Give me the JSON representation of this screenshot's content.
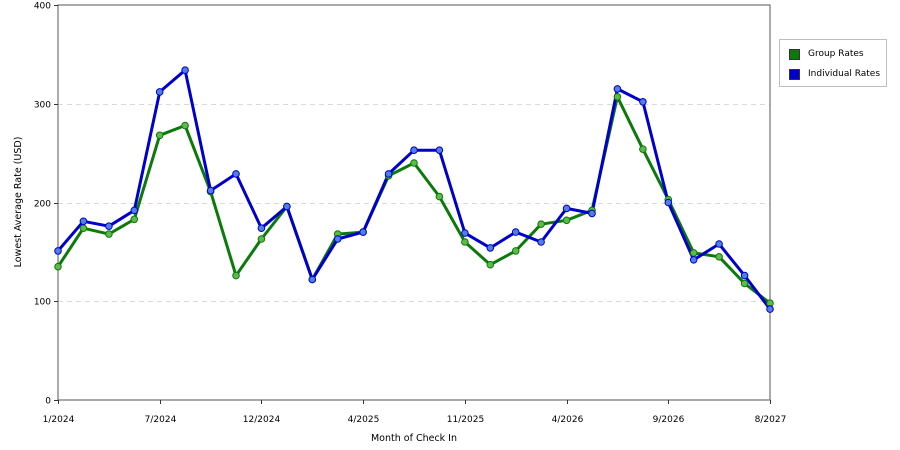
{
  "chart_data": {
    "type": "line",
    "xlabel": "Month of Check In",
    "ylabel": "Lowest Average Rate (USD)",
    "ylim": [
      0,
      400
    ],
    "yticks": [
      0,
      100,
      200,
      300,
      400
    ],
    "x_tick_labels": [
      {
        "index": 0,
        "label": "1/2024"
      },
      {
        "index": 4,
        "label": "7/2024"
      },
      {
        "index": 8,
        "label": "12/2024"
      },
      {
        "index": 12,
        "label": "4/2025"
      },
      {
        "index": 16,
        "label": "11/2025"
      },
      {
        "index": 20,
        "label": "4/2026"
      },
      {
        "index": 24,
        "label": "9/2026"
      },
      {
        "index": 28,
        "label": "8/2027"
      }
    ],
    "grid": "horizontal-dashed",
    "legend_position": "right",
    "series": [
      {
        "name": "Group Rates",
        "color": "#0b7a0b",
        "marker_color": "#5fb84a",
        "values": [
          135,
          174,
          168,
          183,
          268,
          278,
          211,
          126,
          163,
          196,
          122,
          168,
          170,
          227,
          240,
          206,
          160,
          137,
          151,
          178,
          182,
          192,
          307,
          254,
          203,
          149,
          145,
          118,
          98
        ]
      },
      {
        "name": "Individual Rates",
        "color": "#0000cc",
        "marker_color": "#4f7fe0",
        "values": [
          151,
          181,
          176,
          192,
          312,
          334,
          212,
          229,
          174,
          196,
          122,
          163,
          170,
          229,
          253,
          253,
          169,
          154,
          170,
          160,
          194,
          189,
          315,
          302,
          200,
          142,
          158,
          126,
          92
        ]
      }
    ]
  }
}
